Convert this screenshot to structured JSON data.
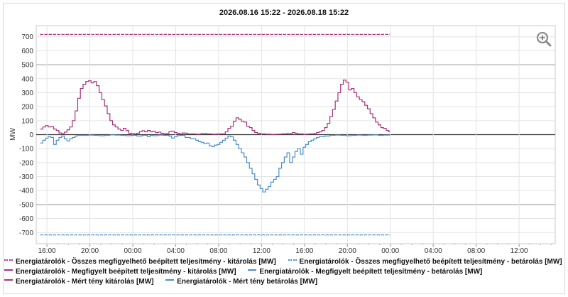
{
  "title": "2026.08.16 15:22 - 2026.08.18 15:22",
  "colors": {
    "kitarolas": "#a8327e",
    "betarolas": "#4a8ec9",
    "zero_line": "#333333"
  },
  "legend": [
    [
      "Energiatárolók - Összes megfigyelhető beépített teljesítmény - kitárolás [MW]",
      "Energiatárolók - Összes megfigyelhető beépített teljesítmény - betárolás [MW]"
    ],
    [
      "Energiatárolók - Megfigyelt beépített teljesítmény - kitárolás [MW]",
      "Energiatárolók - Megfigyelt beépített teljesítmény - betárolás [MW]"
    ],
    [
      "Energiatárolók - Mért tény kitárolás [MW]",
      "Energiatárolók - Mért tény betárolás [MW]"
    ]
  ],
  "zoom_icon": "zoom-in-icon",
  "chart_data": {
    "type": "line",
    "title": "2026.08.16 15:22 - 2026.08.18 15:22",
    "ylabel": "MW",
    "xlabel": "",
    "x_range_hours": [
      -0.367,
      48
    ],
    "ylim": [
      -780,
      780
    ],
    "yticks": [
      700,
      600,
      500,
      400,
      300,
      200,
      100,
      0,
      -100,
      -200,
      -300,
      -400,
      -500,
      -600,
      -700
    ],
    "x_ticks": [
      {
        "t": 0.633,
        "label": "16:00"
      },
      {
        "t": 4.633,
        "label": "20:00"
      },
      {
        "t": 8.633,
        "label": "00:00"
      },
      {
        "t": 12.633,
        "label": "04:00"
      },
      {
        "t": 16.633,
        "label": "08:00"
      },
      {
        "t": 20.633,
        "label": "12:00"
      },
      {
        "t": 24.633,
        "label": "16:00"
      },
      {
        "t": 28.633,
        "label": "20:00"
      },
      {
        "t": 32.633,
        "label": "00:00"
      },
      {
        "t": 36.633,
        "label": "04:00"
      },
      {
        "t": 40.633,
        "label": "08:00"
      },
      {
        "t": 44.633,
        "label": "12:00"
      }
    ],
    "grid": true,
    "series": [
      {
        "name": "Energiatárolók - Összes megfigyelhető beépített teljesítmény - kitárolás [MW]",
        "style": "dotted",
        "color": "#a8327e",
        "points": [
          [
            0,
            718
          ],
          [
            32.6,
            718
          ]
        ]
      },
      {
        "name": "Energiatárolók - Összes megfigyelhető beépített teljesítmény - betárolás [MW]",
        "style": "dotted",
        "color": "#4a8ec9",
        "points": [
          [
            0,
            -718
          ],
          [
            32.6,
            -718
          ]
        ]
      },
      {
        "name": "Energiatárolók - Megfigyelt beépített teljesítmény - kitárolás [MW]",
        "style": "dashed",
        "color": "#a8327e",
        "points": [
          [
            0,
            716
          ],
          [
            32.6,
            716
          ]
        ]
      },
      {
        "name": "Energiatárolók - Megfigyelt beépített teljesítmény - betárolás [MW]",
        "style": "dashed",
        "color": "#4a8ec9",
        "points": [
          [
            0,
            -716
          ],
          [
            32.6,
            -716
          ]
        ]
      },
      {
        "name": "Energiatárolók - Mért tény kitárolás [MW]",
        "style": "step",
        "color": "#a8327e",
        "points": [
          [
            0,
            40
          ],
          [
            0.25,
            55
          ],
          [
            0.5,
            65
          ],
          [
            0.75,
            55
          ],
          [
            1,
            58
          ],
          [
            1.25,
            40
          ],
          [
            1.5,
            30
          ],
          [
            1.75,
            12
          ],
          [
            2,
            8
          ],
          [
            2.25,
            18
          ],
          [
            2.5,
            35
          ],
          [
            2.75,
            55
          ],
          [
            3,
            100
          ],
          [
            3.25,
            170
          ],
          [
            3.5,
            260
          ],
          [
            3.75,
            330
          ],
          [
            4,
            360
          ],
          [
            4.25,
            380
          ],
          [
            4.5,
            385
          ],
          [
            4.75,
            370
          ],
          [
            5,
            380
          ],
          [
            5.25,
            350
          ],
          [
            5.5,
            300
          ],
          [
            5.75,
            250
          ],
          [
            6,
            205
          ],
          [
            6.25,
            150
          ],
          [
            6.5,
            100
          ],
          [
            6.75,
            70
          ],
          [
            7,
            55
          ],
          [
            7.25,
            40
          ],
          [
            7.5,
            30
          ],
          [
            7.75,
            45
          ],
          [
            8,
            30
          ],
          [
            8.25,
            10
          ],
          [
            8.5,
            8
          ],
          [
            8.75,
            5
          ],
          [
            9,
            10
          ],
          [
            9.25,
            22
          ],
          [
            9.5,
            28
          ],
          [
            9.75,
            20
          ],
          [
            10,
            30
          ],
          [
            10.25,
            20
          ],
          [
            10.5,
            25
          ],
          [
            10.75,
            15
          ],
          [
            11,
            18
          ],
          [
            11.25,
            10
          ],
          [
            11.5,
            5
          ],
          [
            11.75,
            8
          ],
          [
            12,
            22
          ],
          [
            12.25,
            25
          ],
          [
            12.5,
            15
          ],
          [
            12.75,
            10
          ],
          [
            13,
            5
          ],
          [
            13.25,
            12
          ],
          [
            13.5,
            10
          ],
          [
            13.75,
            5
          ],
          [
            14,
            5
          ],
          [
            14.5,
            3
          ],
          [
            15,
            8
          ],
          [
            15.5,
            5
          ],
          [
            16,
            3
          ],
          [
            16.5,
            5
          ],
          [
            17,
            5
          ],
          [
            17.25,
            20
          ],
          [
            17.5,
            45
          ],
          [
            17.75,
            60
          ],
          [
            18,
            95
          ],
          [
            18.25,
            120
          ],
          [
            18.5,
            110
          ],
          [
            18.75,
            95
          ],
          [
            19,
            90
          ],
          [
            19.25,
            60
          ],
          [
            19.5,
            50
          ],
          [
            19.75,
            30
          ],
          [
            20,
            15
          ],
          [
            20.25,
            10
          ],
          [
            20.5,
            5
          ],
          [
            21,
            3
          ],
          [
            21.5,
            2
          ],
          [
            22,
            3
          ],
          [
            22.5,
            5
          ],
          [
            23,
            8
          ],
          [
            23.5,
            15
          ],
          [
            23.75,
            10
          ],
          [
            24,
            5
          ],
          [
            24.5,
            3
          ],
          [
            25,
            5
          ],
          [
            25.5,
            8
          ],
          [
            25.75,
            15
          ],
          [
            26,
            20
          ],
          [
            26.25,
            30
          ],
          [
            26.5,
            50
          ],
          [
            26.75,
            80
          ],
          [
            27,
            130
          ],
          [
            27.25,
            180
          ],
          [
            27.5,
            240
          ],
          [
            27.75,
            300
          ],
          [
            28,
            360
          ],
          [
            28.25,
            390
          ],
          [
            28.5,
            375
          ],
          [
            28.75,
            320
          ],
          [
            29,
            330
          ],
          [
            29.25,
            300
          ],
          [
            29.5,
            270
          ],
          [
            29.75,
            250
          ],
          [
            30,
            235
          ],
          [
            30.25,
            210
          ],
          [
            30.5,
            185
          ],
          [
            30.75,
            150
          ],
          [
            31,
            120
          ],
          [
            31.25,
            90
          ],
          [
            31.5,
            70
          ],
          [
            31.75,
            50
          ],
          [
            32,
            45
          ],
          [
            32.25,
            30
          ],
          [
            32.5,
            20
          ],
          [
            32.6,
            20
          ]
        ]
      },
      {
        "name": "Energiatárolók - Mért tény betárolás [MW]",
        "style": "step",
        "color": "#4a8ec9",
        "points": [
          [
            0,
            -60
          ],
          [
            0.25,
            -40
          ],
          [
            0.5,
            -25
          ],
          [
            0.75,
            -15
          ],
          [
            1,
            -20
          ],
          [
            1.25,
            -70
          ],
          [
            1.5,
            -40
          ],
          [
            1.75,
            -20
          ],
          [
            2,
            -10
          ],
          [
            2.25,
            -30
          ],
          [
            2.5,
            -45
          ],
          [
            2.75,
            -30
          ],
          [
            3,
            -20
          ],
          [
            3.25,
            -10
          ],
          [
            3.5,
            -5
          ],
          [
            4,
            -5
          ],
          [
            4.5,
            -3
          ],
          [
            5,
            -5
          ],
          [
            5.5,
            -8
          ],
          [
            6,
            -5
          ],
          [
            6.5,
            -2
          ],
          [
            7,
            -3
          ],
          [
            7.5,
            -5
          ],
          [
            8,
            -8
          ],
          [
            8.5,
            -5
          ],
          [
            9,
            -10
          ],
          [
            9.5,
            -5
          ],
          [
            10,
            -15
          ],
          [
            10.25,
            -5
          ],
          [
            10.5,
            -8
          ],
          [
            11,
            -3
          ],
          [
            11.5,
            -5
          ],
          [
            12,
            -10
          ],
          [
            12.25,
            -25
          ],
          [
            12.5,
            -15
          ],
          [
            12.75,
            -8
          ],
          [
            13,
            -5
          ],
          [
            13.5,
            -20
          ],
          [
            14,
            -30
          ],
          [
            14.5,
            -40
          ],
          [
            14.75,
            -50
          ],
          [
            15,
            -55
          ],
          [
            15.25,
            -65
          ],
          [
            15.5,
            -60
          ],
          [
            15.75,
            -80
          ],
          [
            16,
            -85
          ],
          [
            16.25,
            -75
          ],
          [
            16.5,
            -70
          ],
          [
            16.75,
            -55
          ],
          [
            17,
            -40
          ],
          [
            17.25,
            -25
          ],
          [
            17.5,
            -10
          ],
          [
            17.75,
            -15
          ],
          [
            18,
            -40
          ],
          [
            18.25,
            -70
          ],
          [
            18.5,
            -100
          ],
          [
            18.75,
            -130
          ],
          [
            19,
            -160
          ],
          [
            19.25,
            -200
          ],
          [
            19.5,
            -240
          ],
          [
            19.75,
            -280
          ],
          [
            20,
            -320
          ],
          [
            20.25,
            -360
          ],
          [
            20.5,
            -385
          ],
          [
            20.75,
            -410
          ],
          [
            21,
            -390
          ],
          [
            21.25,
            -370
          ],
          [
            21.5,
            -340
          ],
          [
            21.75,
            -320
          ],
          [
            22,
            -300
          ],
          [
            22.25,
            -240
          ],
          [
            22.5,
            -200
          ],
          [
            22.75,
            -160
          ],
          [
            23,
            -130
          ],
          [
            23.25,
            -200
          ],
          [
            23.5,
            -160
          ],
          [
            23.75,
            -120
          ],
          [
            24,
            -100
          ],
          [
            24.25,
            -140
          ],
          [
            24.5,
            -90
          ],
          [
            24.75,
            -70
          ],
          [
            25,
            -50
          ],
          [
            25.25,
            -40
          ],
          [
            25.5,
            -30
          ],
          [
            25.75,
            -20
          ],
          [
            26,
            -15
          ],
          [
            26.5,
            -10
          ],
          [
            27,
            -5
          ],
          [
            27.5,
            -3
          ],
          [
            28,
            -5
          ],
          [
            28.5,
            -8
          ],
          [
            29,
            -5
          ],
          [
            29.5,
            -3
          ],
          [
            30,
            -5
          ],
          [
            30.5,
            -3
          ],
          [
            31,
            -2
          ],
          [
            31.5,
            -5
          ],
          [
            32,
            -3
          ],
          [
            32.6,
            -3
          ]
        ]
      }
    ]
  }
}
